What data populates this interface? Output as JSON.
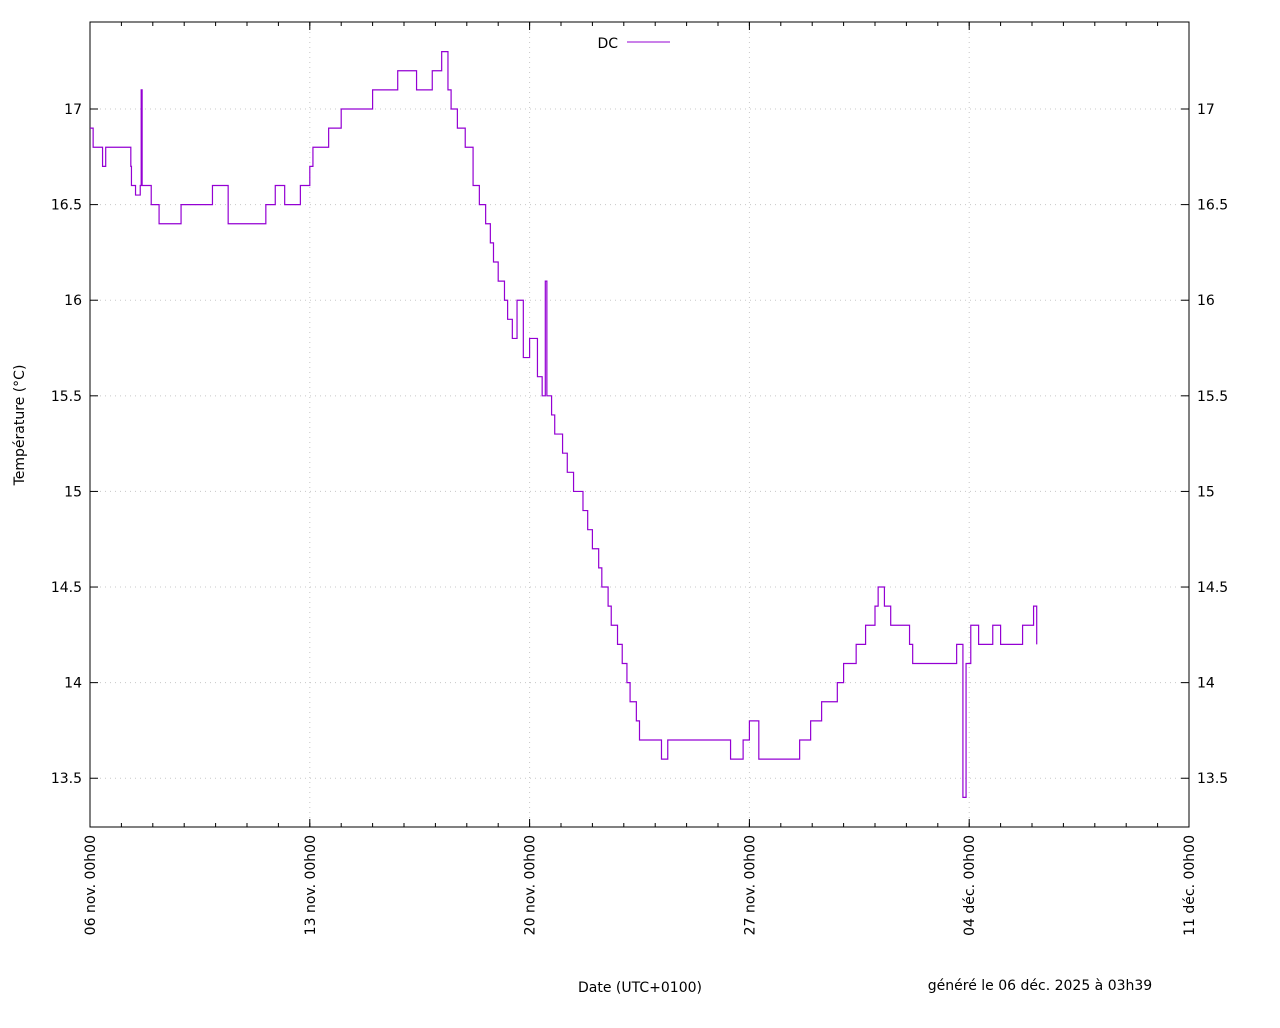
{
  "chart_data": {
    "type": "line",
    "title": "",
    "xlabel": "Date (UTC+0100)",
    "ylabel": "Température (°C)",
    "footer": "généré le 06 déc. 2025 à 03h39",
    "legend": {
      "position": "top-center",
      "entries": [
        "DC"
      ]
    },
    "grid": true,
    "series_color": "#9400d3",
    "xlim_days_from_start": [
      0,
      35
    ],
    "ylim": [
      13.245,
      17.455
    ],
    "x_ticks": [
      {
        "day": 0,
        "label": "06 nov. 00h00"
      },
      {
        "day": 7,
        "label": "13 nov. 00h00"
      },
      {
        "day": 14,
        "label": "20 nov. 00h00"
      },
      {
        "day": 21,
        "label": "27 nov. 00h00"
      },
      {
        "day": 28,
        "label": "04 déc. 00h00"
      },
      {
        "day": 35,
        "label": "11 déc. 00h00"
      }
    ],
    "y_ticks": [
      {
        "value": 13.5,
        "label": "13.5"
      },
      {
        "value": 14,
        "label": "14"
      },
      {
        "value": 14.5,
        "label": "14.5"
      },
      {
        "value": 15,
        "label": "15"
      },
      {
        "value": 15.5,
        "label": "15.5"
      },
      {
        "value": 16,
        "label": "16"
      },
      {
        "value": 16.5,
        "label": "16.5"
      },
      {
        "value": 17,
        "label": "17"
      }
    ],
    "series": [
      {
        "name": "DC",
        "points": [
          [
            0,
            16.9
          ],
          [
            0.1,
            16.8
          ],
          [
            0.4,
            16.7
          ],
          [
            0.5,
            16.8
          ],
          [
            1.2,
            16.8
          ],
          [
            1.3,
            16.7
          ],
          [
            1.32,
            16.6
          ],
          [
            1.45,
            16.55
          ],
          [
            1.6,
            16.6
          ],
          [
            1.63,
            17.1
          ],
          [
            1.66,
            16.6
          ],
          [
            1.9,
            16.6
          ],
          [
            1.95,
            16.5
          ],
          [
            2.2,
            16.4
          ],
          [
            2.9,
            16.5
          ],
          [
            3.9,
            16.6
          ],
          [
            4.3,
            16.6
          ],
          [
            4.4,
            16.4
          ],
          [
            5.6,
            16.5
          ],
          [
            5.9,
            16.6
          ],
          [
            6.2,
            16.5
          ],
          [
            6.7,
            16.6
          ],
          [
            7.0,
            16.7
          ],
          [
            7.1,
            16.8
          ],
          [
            7.6,
            16.9
          ],
          [
            8.0,
            17.0
          ],
          [
            9.0,
            17.1
          ],
          [
            9.8,
            17.2
          ],
          [
            10.4,
            17.1
          ],
          [
            10.9,
            17.2
          ],
          [
            11.2,
            17.3
          ],
          [
            11.4,
            17.1
          ],
          [
            11.5,
            17.0
          ],
          [
            11.7,
            16.9
          ],
          [
            11.95,
            16.8
          ],
          [
            12.2,
            16.6
          ],
          [
            12.4,
            16.5
          ],
          [
            12.6,
            16.4
          ],
          [
            12.75,
            16.3
          ],
          [
            12.85,
            16.2
          ],
          [
            13.0,
            16.1
          ],
          [
            13.2,
            16.0
          ],
          [
            13.3,
            15.9
          ],
          [
            13.45,
            15.8
          ],
          [
            13.6,
            16.0
          ],
          [
            13.8,
            15.7
          ],
          [
            14.0,
            15.8
          ],
          [
            14.25,
            15.6
          ],
          [
            14.4,
            15.5
          ],
          [
            14.5,
            16.1
          ],
          [
            14.55,
            15.5
          ],
          [
            14.7,
            15.4
          ],
          [
            14.8,
            15.3
          ],
          [
            15.05,
            15.2
          ],
          [
            15.2,
            15.1
          ],
          [
            15.4,
            15.0
          ],
          [
            15.7,
            14.9
          ],
          [
            15.85,
            14.8
          ],
          [
            16.0,
            14.7
          ],
          [
            16.2,
            14.6
          ],
          [
            16.3,
            14.5
          ],
          [
            16.5,
            14.4
          ],
          [
            16.6,
            14.3
          ],
          [
            16.8,
            14.2
          ],
          [
            16.95,
            14.1
          ],
          [
            17.1,
            14.0
          ],
          [
            17.2,
            13.9
          ],
          [
            17.4,
            13.8
          ],
          [
            17.5,
            13.7
          ],
          [
            18.2,
            13.6
          ],
          [
            18.4,
            13.7
          ],
          [
            19.4,
            13.7
          ],
          [
            20.4,
            13.6
          ],
          [
            20.8,
            13.7
          ],
          [
            21.0,
            13.8
          ],
          [
            21.3,
            13.6
          ],
          [
            22.6,
            13.7
          ],
          [
            22.95,
            13.8
          ],
          [
            23.3,
            13.9
          ],
          [
            23.8,
            14.0
          ],
          [
            24.0,
            14.1
          ],
          [
            24.4,
            14.2
          ],
          [
            24.7,
            14.3
          ],
          [
            25.0,
            14.4
          ],
          [
            25.1,
            14.5
          ],
          [
            25.3,
            14.4
          ],
          [
            25.5,
            14.3
          ],
          [
            26.0,
            14.3
          ],
          [
            26.1,
            14.2
          ],
          [
            26.2,
            14.1
          ],
          [
            26.8,
            14.1
          ],
          [
            27.6,
            14.2
          ],
          [
            27.8,
            13.4
          ],
          [
            27.9,
            14.1
          ],
          [
            28.05,
            14.3
          ],
          [
            28.3,
            14.2
          ],
          [
            28.75,
            14.3
          ],
          [
            29.0,
            14.2
          ],
          [
            29.7,
            14.3
          ],
          [
            30.05,
            14.4
          ],
          [
            30.15,
            14.2
          ]
        ]
      }
    ]
  }
}
